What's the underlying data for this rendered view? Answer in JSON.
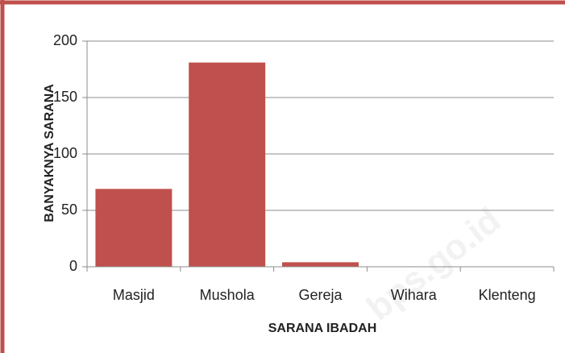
{
  "chart_data": {
    "type": "bar",
    "categories": [
      "Masjid",
      "Mushola",
      "Gereja",
      "Wihara",
      "Klenteng"
    ],
    "values": [
      69,
      181,
      4,
      0,
      0
    ],
    "color": "#c0504d",
    "xlabel": "SARANA IBADAH",
    "ylabel": "BANYAKNYA SARANA",
    "ylim": [
      0,
      200
    ],
    "yticks": [
      0,
      50,
      100,
      150,
      200
    ],
    "grid": true,
    "watermark": "bps.go.id"
  }
}
